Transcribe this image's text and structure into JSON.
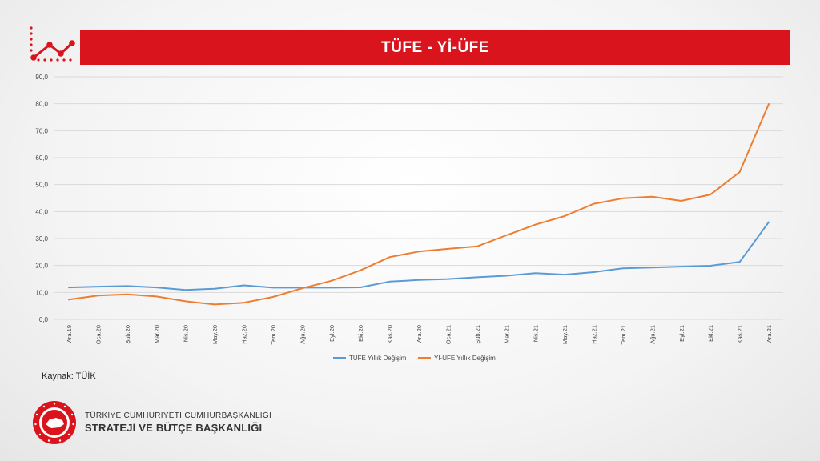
{
  "banner": {
    "title": "TÜFE - Yİ-ÜFE"
  },
  "source": {
    "text": "Kaynak: TÜİK"
  },
  "org": {
    "line1": "TÜRKİYE CUMHURİYETİ CUMHURBAŞKANLIĞI",
    "line2": "STRATEJİ VE BÜTÇE BAŞKANLIĞI"
  },
  "icons": {
    "corner": "line-chart-icon",
    "logo": "presidency-seal-icon"
  },
  "colors": {
    "banner": "#d9141c",
    "tufe": "#5b9bd5",
    "yiufe": "#ed7d31"
  },
  "chart_data": {
    "type": "line",
    "categories": [
      "Ara.19",
      "Oca.20",
      "Şub.20",
      "Mar.20",
      "Nis.20",
      "May.20",
      "Haz.20",
      "Tem.20",
      "Ağu.20",
      "Eyl.20",
      "Eki.20",
      "Kas.20",
      "Ara.20",
      "Oca.21",
      "Şub.21",
      "Mar.21",
      "Nis.21",
      "May.21",
      "Haz.21",
      "Tem.21",
      "Ağu.21",
      "Eyl.21",
      "Eki.21",
      "Kas.21",
      "Ara.21"
    ],
    "series": [
      {
        "name": "TÜFE Yıllık Değişim",
        "color": "#5b9bd5",
        "values": [
          11.84,
          12.15,
          12.37,
          11.86,
          10.94,
          11.39,
          12.62,
          11.76,
          11.77,
          11.75,
          11.89,
          14.03,
          14.6,
          14.97,
          15.61,
          16.19,
          17.14,
          16.59,
          17.53,
          18.95,
          19.25,
          19.58,
          19.89,
          21.31,
          36.08
        ]
      },
      {
        "name": "Yİ-ÜFE Yıllık Değişim",
        "color": "#ed7d31",
        "values": [
          7.36,
          8.84,
          9.26,
          8.5,
          6.71,
          5.53,
          6.17,
          8.33,
          11.53,
          14.33,
          18.2,
          23.11,
          25.15,
          26.16,
          27.09,
          31.2,
          35.17,
          38.33,
          42.89,
          44.92,
          45.52,
          43.96,
          46.31,
          54.62,
          79.89
        ]
      }
    ],
    "y_ticks": [
      "0,0",
      "10,0",
      "20,0",
      "30,0",
      "40,0",
      "50,0",
      "60,0",
      "70,0",
      "80,0",
      "90,0"
    ],
    "ylim": [
      0,
      90
    ],
    "grid": true,
    "legend": "bottom"
  }
}
